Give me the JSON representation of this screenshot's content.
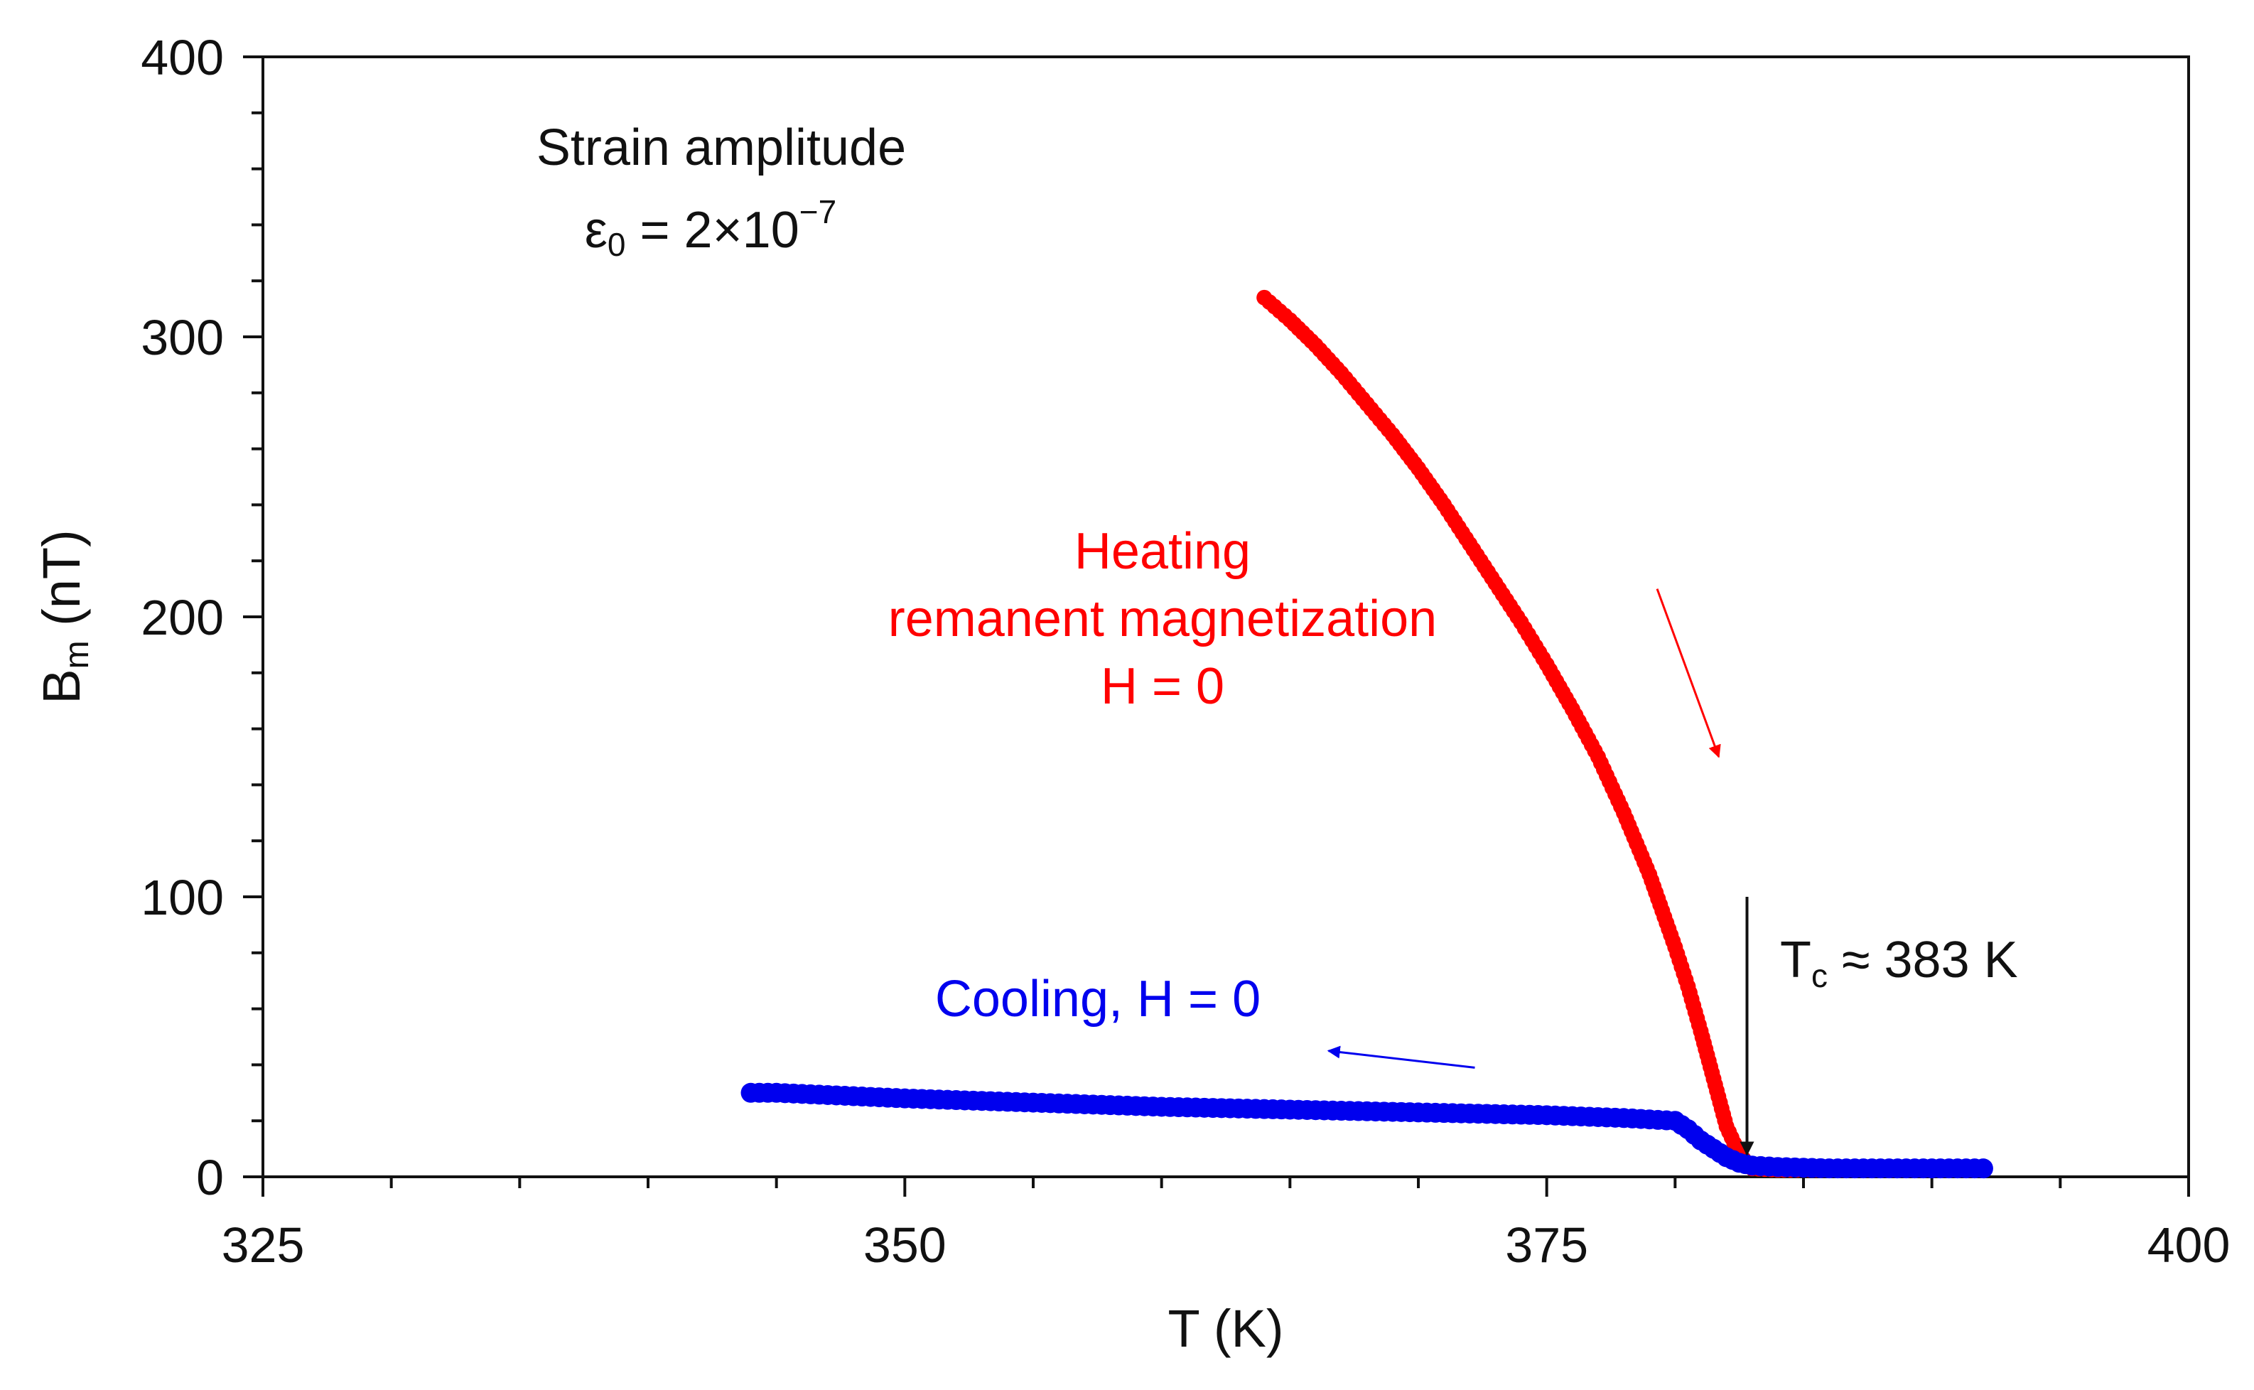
{
  "colors": {
    "axis": "#111111",
    "heating": "#ff0000",
    "cooling": "#0000ee",
    "tc_arrow": "#888888",
    "tc_arrowhead": "#111111"
  },
  "chart_data": {
    "type": "scatter",
    "title": "",
    "xlabel": "T (K)",
    "ylabel_main": "B",
    "ylabel_sub": "m",
    "ylabel_unit": " (nT)",
    "xlim": [
      325,
      400
    ],
    "ylim": [
      0,
      400
    ],
    "xticks": [
      325,
      350,
      375,
      400
    ],
    "yticks": [
      0,
      100,
      200,
      300,
      400
    ],
    "x_minor_step": 5,
    "y_minor_step": 20,
    "grid": false,
    "series": [
      {
        "name": "Heating remanent magnetization, H = 0",
        "color": "#ff0000",
        "marker": "circle",
        "points": [
          [
            364.0,
            314
          ],
          [
            365.0,
            306
          ],
          [
            366.0,
            297
          ],
          [
            367.0,
            287
          ],
          [
            368.0,
            276
          ],
          [
            369.0,
            265
          ],
          [
            370.0,
            253
          ],
          [
            371.0,
            240
          ],
          [
            372.0,
            226
          ],
          [
            373.0,
            212
          ],
          [
            374.0,
            198
          ],
          [
            375.0,
            183
          ],
          [
            376.0,
            167
          ],
          [
            377.0,
            150
          ],
          [
            378.0,
            130
          ],
          [
            379.0,
            108
          ],
          [
            379.5,
            95
          ],
          [
            380.0,
            82
          ],
          [
            380.5,
            68
          ],
          [
            381.0,
            52
          ],
          [
            381.5,
            35
          ],
          [
            382.0,
            18
          ],
          [
            382.5,
            8
          ],
          [
            383.0,
            3
          ],
          [
            384.0,
            2.5
          ],
          [
            386.0,
            2.5
          ],
          [
            388.0,
            2.5
          ],
          [
            390.0,
            2.5
          ],
          [
            392.0,
            2.5
          ]
        ]
      },
      {
        "name": "Cooling, H = 0",
        "color": "#0000ee",
        "marker": "circle",
        "points": [
          [
            392.0,
            3
          ],
          [
            390.0,
            3
          ],
          [
            388.0,
            3
          ],
          [
            386.0,
            3
          ],
          [
            384.0,
            3.5
          ],
          [
            383.0,
            4
          ],
          [
            382.5,
            5
          ],
          [
            382.0,
            7
          ],
          [
            381.5,
            10
          ],
          [
            381.0,
            13
          ],
          [
            380.5,
            17
          ],
          [
            380.0,
            20
          ],
          [
            378.0,
            21
          ],
          [
            375.0,
            22
          ],
          [
            370.0,
            23
          ],
          [
            365.0,
            24
          ],
          [
            360.0,
            25
          ],
          [
            355.0,
            26.5
          ],
          [
            350.0,
            28
          ],
          [
            345.0,
            30
          ],
          [
            344.0,
            30
          ]
        ]
      }
    ],
    "annotations": {
      "strain_line1": "Strain amplitude",
      "strain_eps": "ε",
      "strain_eps_sub": "0",
      "strain_eq": " = 2×10",
      "strain_exp": "−7",
      "heating_line1": "Heating",
      "heating_line2": "remanent magnetization",
      "heating_line3": "H = 0",
      "cooling_label": "Cooling, H = 0",
      "tc_main": "T",
      "tc_sub": "c",
      "tc_rest": " ≈ 383 K",
      "tc_value": 383
    },
    "arrows": {
      "heating_arrow": {
        "from": [
          379.3,
          210
        ],
        "to": [
          381.7,
          150
        ]
      },
      "cooling_arrow": {
        "from": [
          372.2,
          39
        ],
        "to": [
          366.5,
          45
        ]
      },
      "tc_arrow": {
        "from": [
          382.8,
          100
        ],
        "to": [
          382.8,
          8
        ]
      }
    }
  }
}
